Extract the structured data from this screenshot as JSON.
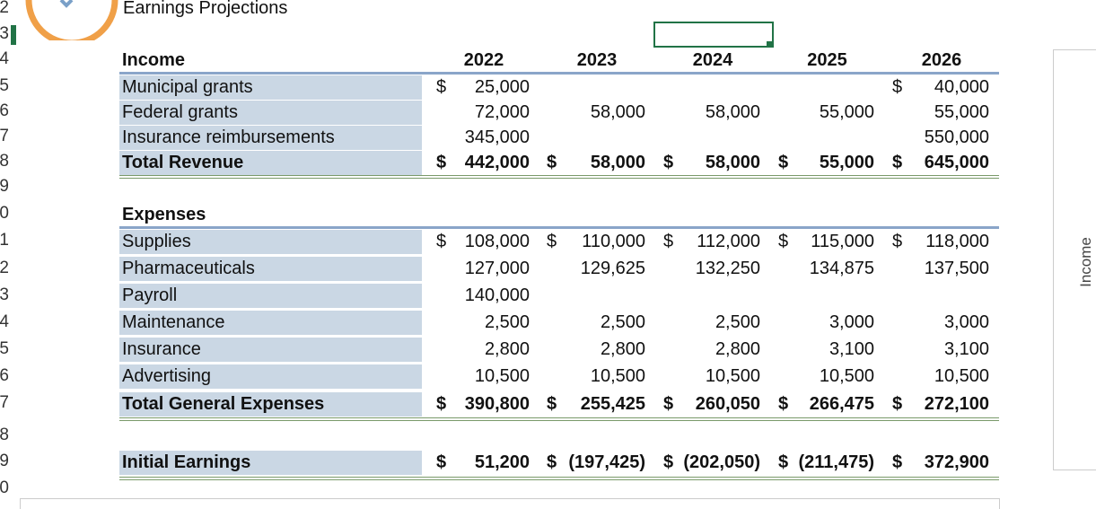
{
  "sheet": {
    "title": "Earnings Projections",
    "row_numbers": [
      "2",
      "3",
      "4",
      "5",
      "6",
      "7",
      "8",
      "9",
      "0",
      "1",
      "2",
      "3",
      "4",
      "5",
      "6",
      "7",
      "8",
      "9",
      "0"
    ],
    "income": {
      "header": "Income",
      "years": [
        "2022",
        "2023",
        "2024",
        "2025",
        "2026"
      ],
      "rows": [
        {
          "label": "Municipal grants",
          "cells": [
            {
              "currency": "$",
              "amount": "25,000"
            },
            null,
            null,
            null,
            {
              "currency": "$",
              "amount": "40,000"
            }
          ]
        },
        {
          "label": "Federal grants",
          "cells": [
            {
              "amount": "72,000"
            },
            {
              "amount": "58,000"
            },
            {
              "amount": "58,000"
            },
            {
              "amount": "55,000"
            },
            {
              "amount": "55,000"
            }
          ]
        },
        {
          "label": "Insurance reimbursements",
          "cells": [
            {
              "amount": "345,000"
            },
            null,
            null,
            null,
            {
              "amount": "550,000"
            }
          ]
        }
      ],
      "total": {
        "label": "Total Revenue",
        "cells": [
          {
            "currency": "$",
            "amount": "442,000"
          },
          {
            "currency": "$",
            "amount": "58,000"
          },
          {
            "currency": "$",
            "amount": "58,000"
          },
          {
            "currency": "$",
            "amount": "55,000"
          },
          {
            "currency": "$",
            "amount": "645,000"
          }
        ]
      }
    },
    "expenses": {
      "header": "Expenses",
      "rows": [
        {
          "label": "Supplies",
          "cells": [
            {
              "currency": "$",
              "amount": "108,000"
            },
            {
              "currency": "$",
              "amount": "110,000"
            },
            {
              "currency": "$",
              "amount": "112,000"
            },
            {
              "currency": "$",
              "amount": "115,000"
            },
            {
              "currency": "$",
              "amount": "118,000"
            }
          ]
        },
        {
          "label": "Pharmaceuticals",
          "cells": [
            {
              "amount": "127,000"
            },
            {
              "amount": "129,625"
            },
            {
              "amount": "132,250"
            },
            {
              "amount": "134,875"
            },
            {
              "amount": "137,500"
            }
          ]
        },
        {
          "label": "Payroll",
          "cells": [
            {
              "amount": "140,000"
            },
            null,
            null,
            null,
            null
          ]
        },
        {
          "label": "Maintenance",
          "cells": [
            {
              "amount": "2,500"
            },
            {
              "amount": "2,500"
            },
            {
              "amount": "2,500"
            },
            {
              "amount": "3,000"
            },
            {
              "amount": "3,000"
            }
          ]
        },
        {
          "label": "Insurance",
          "cells": [
            {
              "amount": "2,800"
            },
            {
              "amount": "2,800"
            },
            {
              "amount": "2,800"
            },
            {
              "amount": "3,100"
            },
            {
              "amount": "3,100"
            }
          ]
        },
        {
          "label": "Advertising",
          "cells": [
            {
              "amount": "10,500"
            },
            {
              "amount": "10,500"
            },
            {
              "amount": "10,500"
            },
            {
              "amount": "10,500"
            },
            {
              "amount": "10,500"
            }
          ]
        }
      ],
      "total": {
        "label": "Total General Expenses",
        "cells": [
          {
            "currency": "$",
            "amount": "390,800"
          },
          {
            "currency": "$",
            "amount": "255,425"
          },
          {
            "currency": "$",
            "amount": "260,050"
          },
          {
            "currency": "$",
            "amount": "266,475"
          },
          {
            "currency": "$",
            "amount": "272,100"
          }
        ]
      }
    },
    "earnings": {
      "label": "Initial Earnings",
      "cells": [
        {
          "currency": "$",
          "amount": "51,200"
        },
        {
          "currency": "$",
          "amount": "(197,425)"
        },
        {
          "currency": "$",
          "amount": "(202,050)"
        },
        {
          "currency": "$",
          "amount": "(211,475)"
        },
        {
          "currency": "$",
          "amount": "372,900"
        }
      ]
    }
  },
  "side_panel": {
    "label": "Income"
  }
}
